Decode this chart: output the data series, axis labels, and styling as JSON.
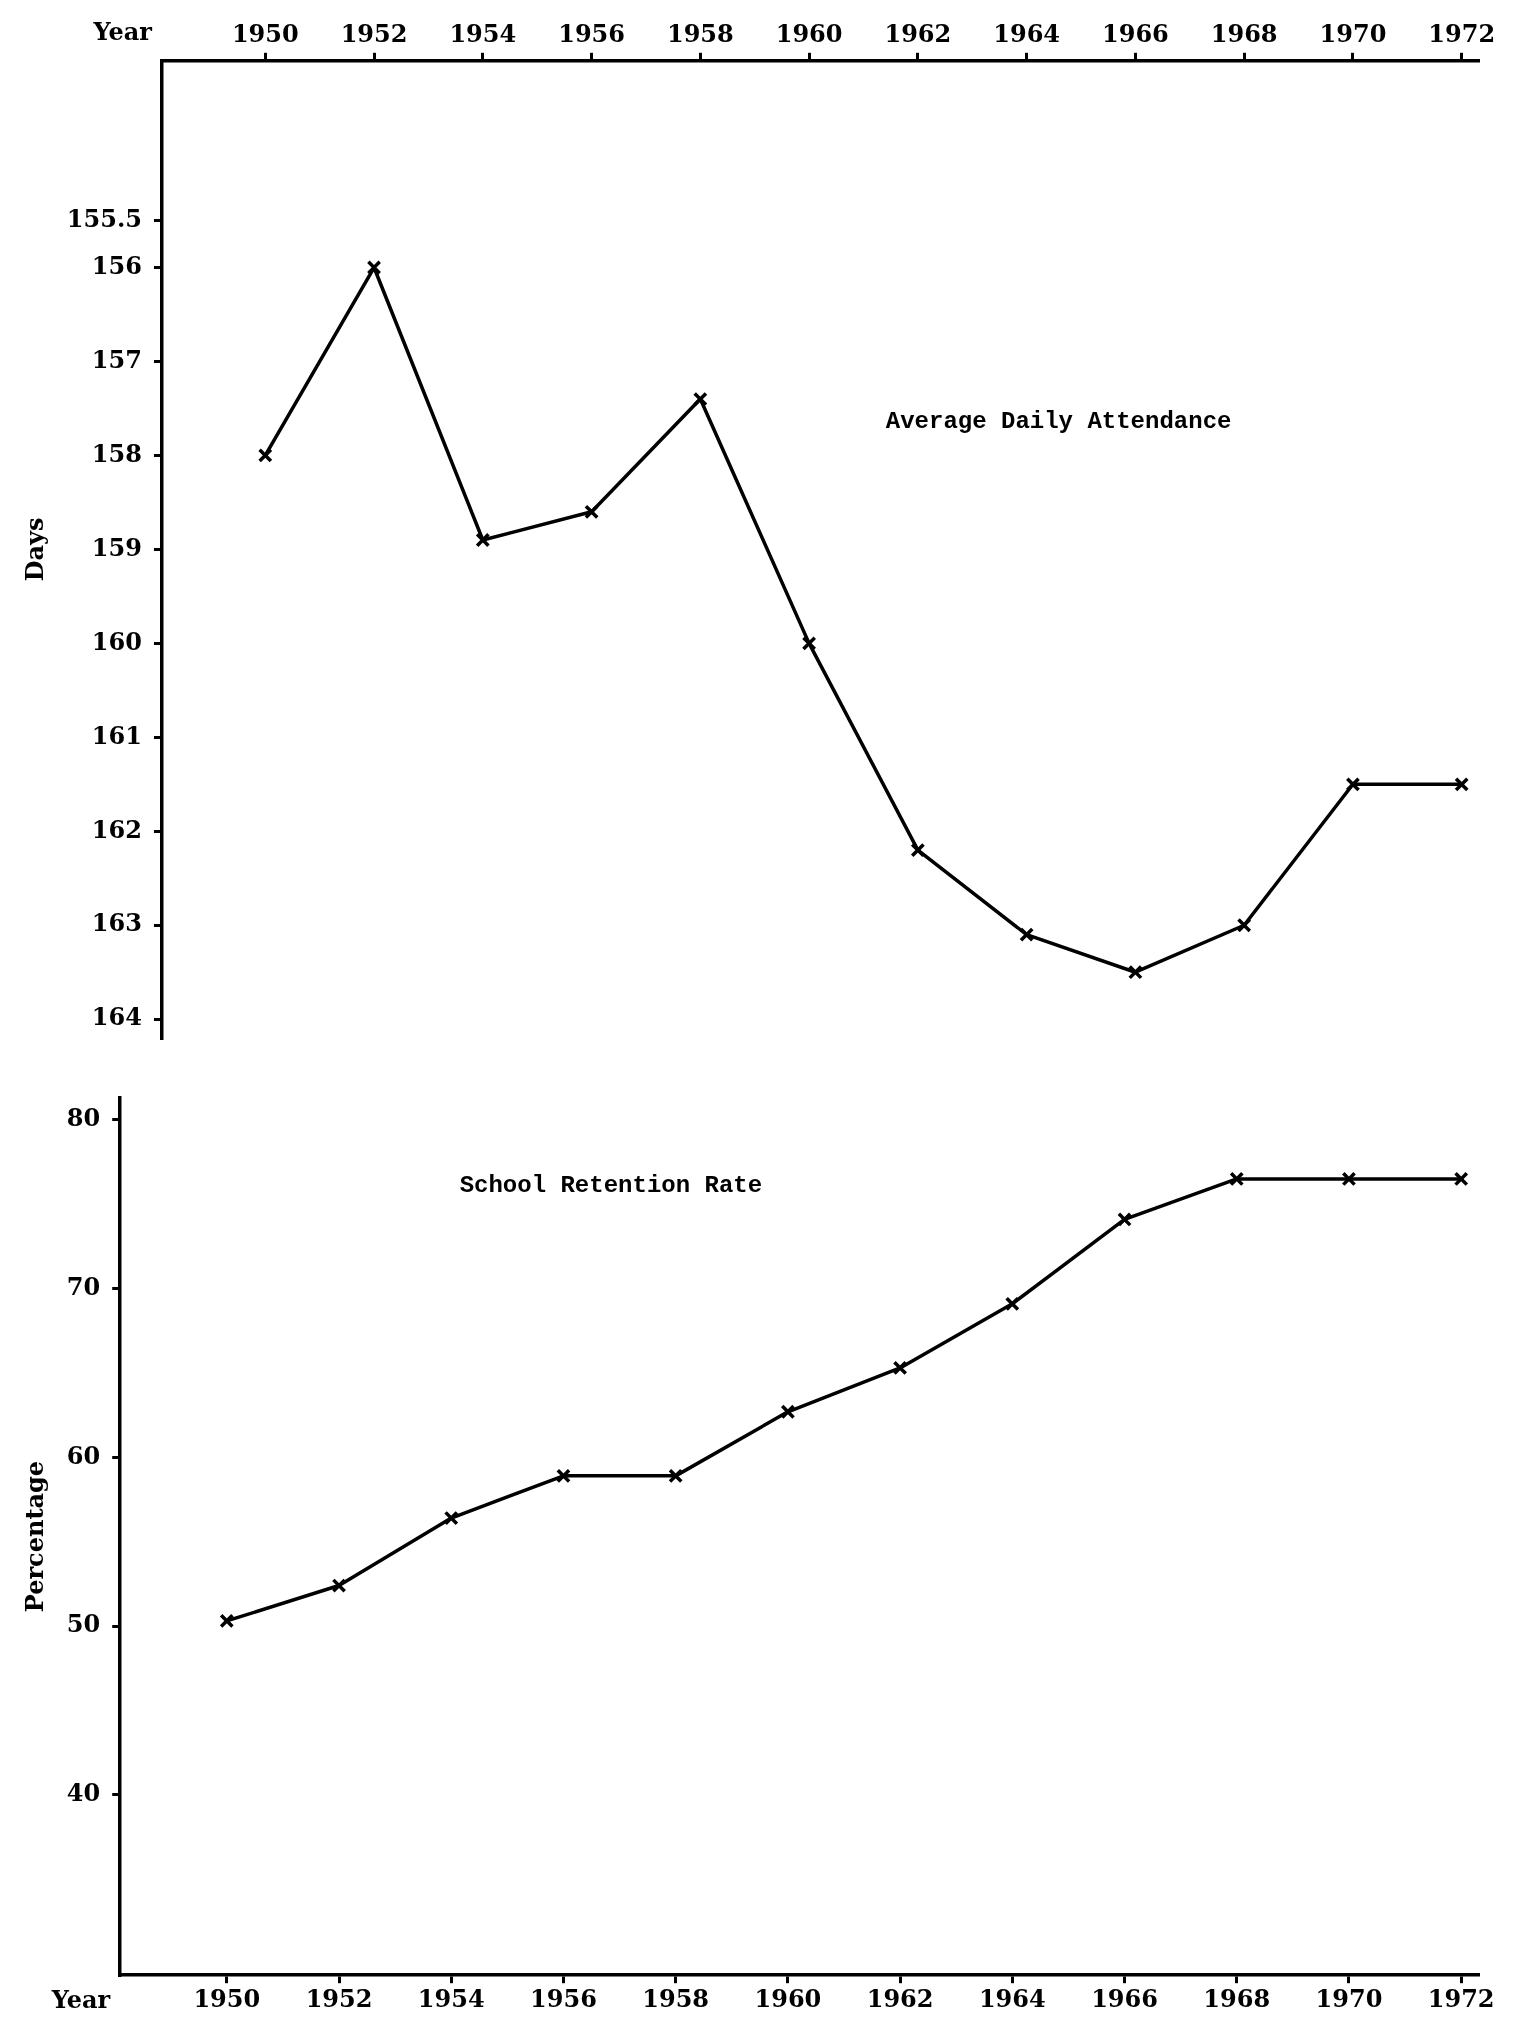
{
  "chart_data": [
    {
      "type": "line",
      "xlabel": "Year",
      "ylabel": "Days",
      "x": [
        1950,
        1952,
        1954,
        1956,
        1958,
        1960,
        1962,
        1964,
        1966,
        1968,
        1970,
        1972
      ],
      "series": [
        {
          "name": "Average Daily Attendance",
          "color": "#000000",
          "values": [
            158.0,
            156.0,
            158.9,
            158.6,
            157.4,
            160.0,
            162.2,
            163.1,
            163.5,
            163.0,
            161.5,
            161.5
          ]
        }
      ],
      "xlim": [
        1948.1,
        1972.3
      ],
      "ylim": [
        164.2,
        153.8
      ],
      "xticks": [
        1950,
        1952,
        1954,
        1956,
        1958,
        1960,
        1962,
        1964,
        1966,
        1968,
        1970,
        1972
      ],
      "yticks": [
        155.5,
        156,
        157,
        158,
        159,
        160,
        161,
        162,
        163,
        164
      ],
      "marker": "cross",
      "line_style": "solid"
    },
    {
      "type": "line",
      "xlabel": "Year",
      "ylabel": "Percentage",
      "x": [
        1950,
        1952,
        1954,
        1956,
        1958,
        1960,
        1962,
        1964,
        1966,
        1968,
        1970,
        1972
      ],
      "series": [
        {
          "name": "School Retention Rate",
          "color": "#000000",
          "values": [
            50.3,
            52.4,
            56.4,
            58.9,
            58.9,
            62.7,
            65.3,
            69.1,
            74.1,
            76.5,
            76.5,
            76.5
          ]
        }
      ],
      "xlim": [
        1948.1,
        1972.3
      ],
      "ylim": [
        29.3,
        81.3
      ],
      "xticks": [
        1950,
        1952,
        1954,
        1956,
        1958,
        1960,
        1962,
        1964,
        1966,
        1968,
        1970,
        1972
      ],
      "yticks": [
        40,
        50,
        60,
        70,
        80
      ],
      "marker": "cross",
      "line_style": "solid"
    }
  ]
}
